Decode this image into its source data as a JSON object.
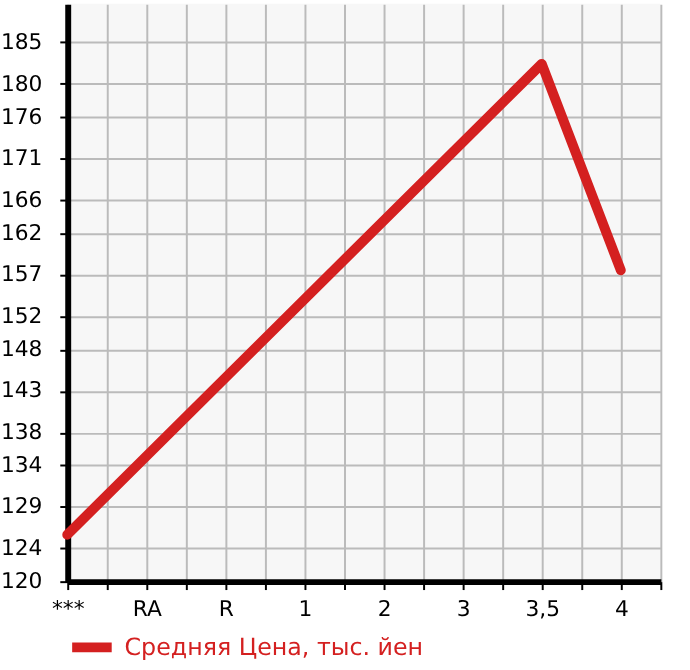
{
  "chart_data": {
    "type": "line",
    "categories": [
      "***",
      "RA",
      "R",
      "1",
      "2",
      "3",
      "3,5",
      "4"
    ],
    "series": [
      {
        "name": "Средняя Цена, тыс. йен",
        "color": "#d42020",
        "values": [
          125.6,
          null,
          null,
          null,
          null,
          null,
          182.4,
          157.5
        ]
      }
    ],
    "ylim": [
      120,
      189.64
    ],
    "yticks": [
      120,
      124,
      129,
      134,
      138,
      143,
      148,
      152,
      157,
      162,
      166,
      171,
      176,
      180,
      185
    ],
    "grid": true,
    "legend": "bottom left",
    "line_style": "solid",
    "marker": "none"
  }
}
